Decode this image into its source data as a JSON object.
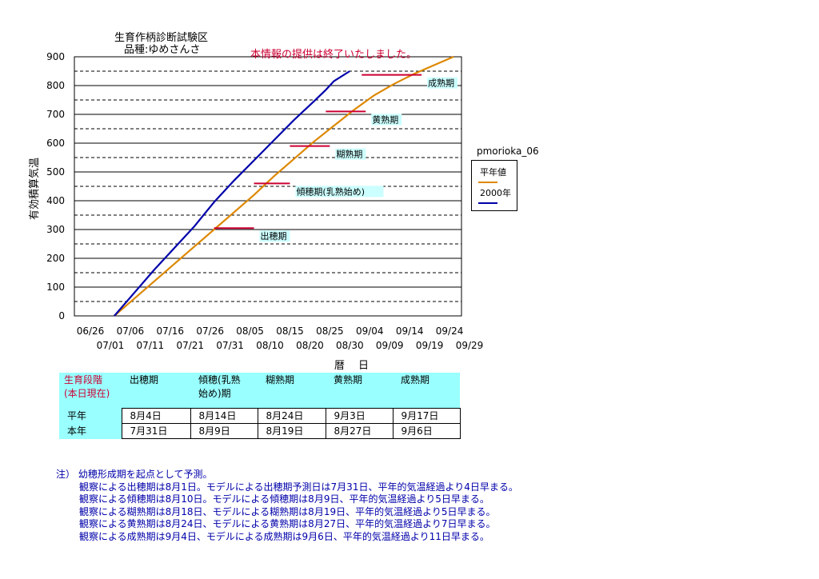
{
  "header": {
    "title": "生育作柄診断試験区",
    "variety": "品種:ゆめさんさ",
    "notice": "本情報の提供は終了いたしました。"
  },
  "chart_data": {
    "type": "line",
    "ylabel": "有効積算気温",
    "xlabel": "暦　日",
    "ylim": [
      0,
      900
    ],
    "yticks": [
      0,
      100,
      200,
      300,
      400,
      500,
      600,
      700,
      800,
      900
    ],
    "xticks_top": [
      "06/26",
      "07/06",
      "07/16",
      "07/26",
      "08/05",
      "08/15",
      "08/25",
      "09/04",
      "09/14",
      "09/24"
    ],
    "xticks_bottom": [
      "07/01",
      "07/11",
      "07/21",
      "07/31",
      "08/10",
      "08/20",
      "08/30",
      "09/09",
      "09/19",
      "09/29"
    ],
    "x_start": "06/26",
    "grid": true,
    "legend_title": "pmorioka_06",
    "series": [
      {
        "name": "平年値",
        "color": "#dd8800",
        "points": [
          [
            10,
            0
          ],
          [
            15,
            60
          ],
          [
            20,
            120
          ],
          [
            25,
            180
          ],
          [
            30,
            240
          ],
          [
            35,
            300
          ],
          [
            40,
            360
          ],
          [
            45,
            420
          ],
          [
            50,
            485
          ],
          [
            55,
            545
          ],
          [
            60,
            605
          ],
          [
            65,
            660
          ],
          [
            70,
            715
          ],
          [
            75,
            765
          ],
          [
            80,
            805
          ],
          [
            85,
            840
          ],
          [
            90,
            870
          ],
          [
            95,
            900
          ]
        ]
      },
      {
        "name": "2000年",
        "color": "#0000aa",
        "points": [
          [
            10,
            0
          ],
          [
            15,
            80
          ],
          [
            20,
            160
          ],
          [
            25,
            235
          ],
          [
            30,
            310
          ],
          [
            35,
            395
          ],
          [
            40,
            470
          ],
          [
            45,
            540
          ],
          [
            50,
            610
          ],
          [
            55,
            680
          ],
          [
            60,
            745
          ],
          [
            63,
            785
          ],
          [
            65,
            815
          ],
          [
            69,
            850
          ]
        ]
      }
    ],
    "stage_markers": [
      {
        "label": "出穂期",
        "y": 305,
        "x1": 35,
        "x2": 45
      },
      {
        "label": "傾穂期(乳熟始め)",
        "y": 460,
        "x1": 45,
        "x2": 54
      },
      {
        "label": "糊熟期",
        "y": 590,
        "x1": 54,
        "x2": 64
      },
      {
        "label": "黄熟期",
        "y": 710,
        "x1": 63,
        "x2": 73
      },
      {
        "label": "成熟期",
        "y": 837,
        "x1": 72,
        "x2": 87
      }
    ],
    "colors": {
      "marker": "#cc0033",
      "label_bg": "#ccffff",
      "plot_bg": "#ffffff"
    }
  },
  "stages_table": {
    "header_row_label": "生育段階\n(本日現在)",
    "columns": [
      "出穂期",
      "傾穂(乳熟\n始め)期",
      "糊熟期",
      "黄熟期",
      "成熟期"
    ],
    "rows": [
      {
        "label": "平年",
        "values": [
          "8月4日",
          "8月14日",
          "8月24日",
          "9月3日",
          "9月17日"
        ]
      },
      {
        "label": "本年",
        "values": [
          "7月31日",
          "8月9日",
          "8月19日",
          "8月27日",
          "9月6日"
        ]
      }
    ]
  },
  "notes": {
    "intro": "注）  幼穂形成期を起点として予測。",
    "lines": [
      "観察による出穂期は8月1日。モデルによる出穂期予測日は7月31日、平年的気温経過より4日早まる。",
      "観察による傾穂期は8月10日。モデルによる傾穂期は8月9日、平年的気温経過より5日早まる。",
      "観察による糊熟期は8月18日、モデルによる糊熟期は8月19日、平年的気温経過より5日早まる。",
      "観察による黄熟期は8月24日、モデルによる黄熟期は8月27日、平年的気温経過より7日早まる。",
      "観察による成熟期は9月4日、モデルによる成熟期は9月6日、平年的気温経過より11日早まる。"
    ]
  }
}
